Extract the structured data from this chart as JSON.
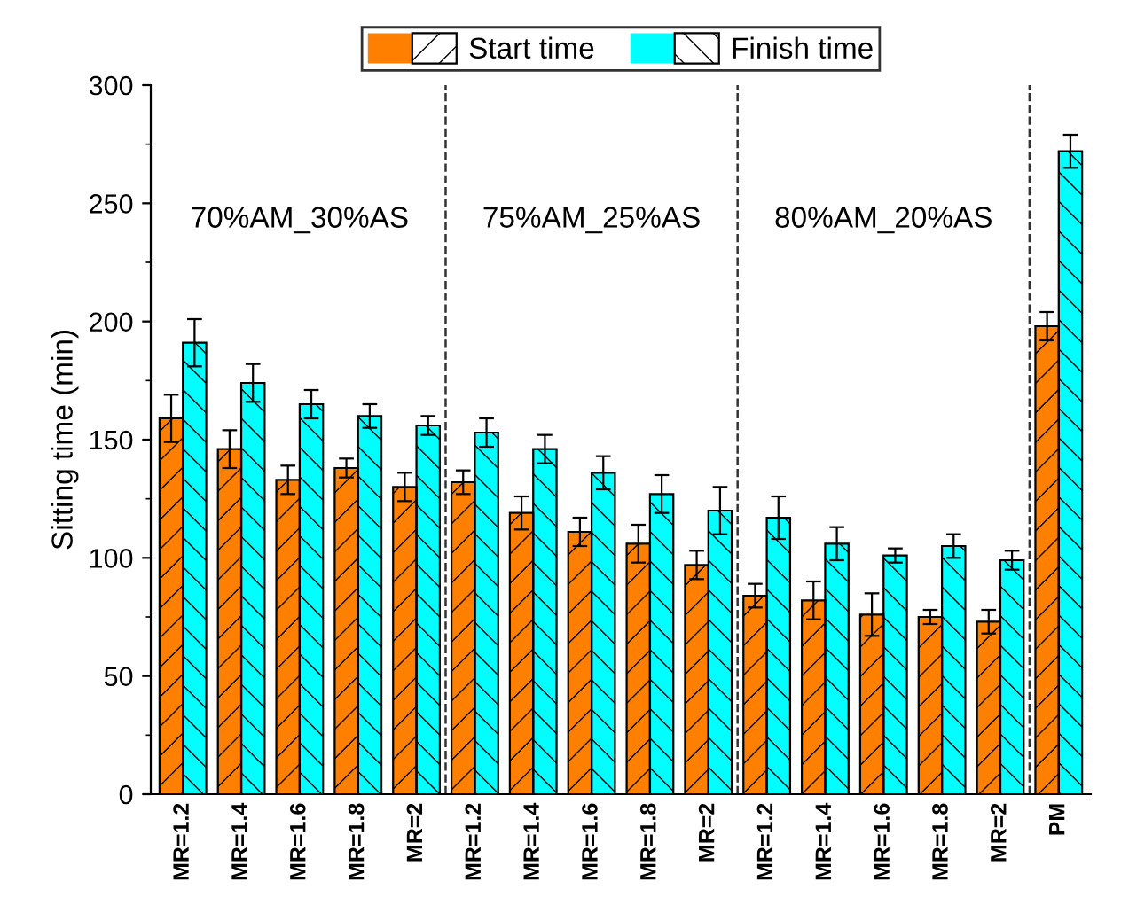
{
  "chart_data": {
    "type": "bar",
    "ylabel": "Sitting time (min)",
    "categories": [
      "MR=1.2",
      "MR=1.4",
      "MR=1.6",
      "MR=1.8",
      "MR=2",
      "MR=1.2",
      "MR=1.4",
      "MR=1.6",
      "MR=1.8",
      "MR=2",
      "MR=1.2",
      "MR=1.4",
      "MR=1.6",
      "MR=1.8",
      "MR=2",
      "PM"
    ],
    "series": [
      {
        "name": "Start time",
        "color": "#ff8000",
        "values": [
          159,
          146,
          133,
          138,
          130,
          132,
          119,
          111,
          106,
          97,
          84,
          82,
          76,
          75,
          73,
          198
        ],
        "errors": [
          10,
          8,
          6,
          4,
          6,
          5,
          7,
          6,
          8,
          6,
          5,
          8,
          9,
          3,
          5,
          6
        ]
      },
      {
        "name": "Finish time",
        "color": "#00ffff",
        "values": [
          191,
          174,
          165,
          160,
          156,
          153,
          146,
          136,
          127,
          120,
          117,
          106,
          101,
          105,
          99,
          272
        ],
        "errors": [
          10,
          8,
          6,
          5,
          4,
          6,
          6,
          7,
          8,
          10,
          9,
          7,
          3,
          5,
          4,
          7
        ]
      }
    ],
    "ylim": [
      0,
      300
    ],
    "yticks": [
      0,
      50,
      100,
      150,
      200,
      250,
      300
    ],
    "annotations": [
      "70%AM_30%AS",
      "75%AM_25%AS",
      "80%AM_20%AS"
    ],
    "legend": "top",
    "grid": false
  }
}
